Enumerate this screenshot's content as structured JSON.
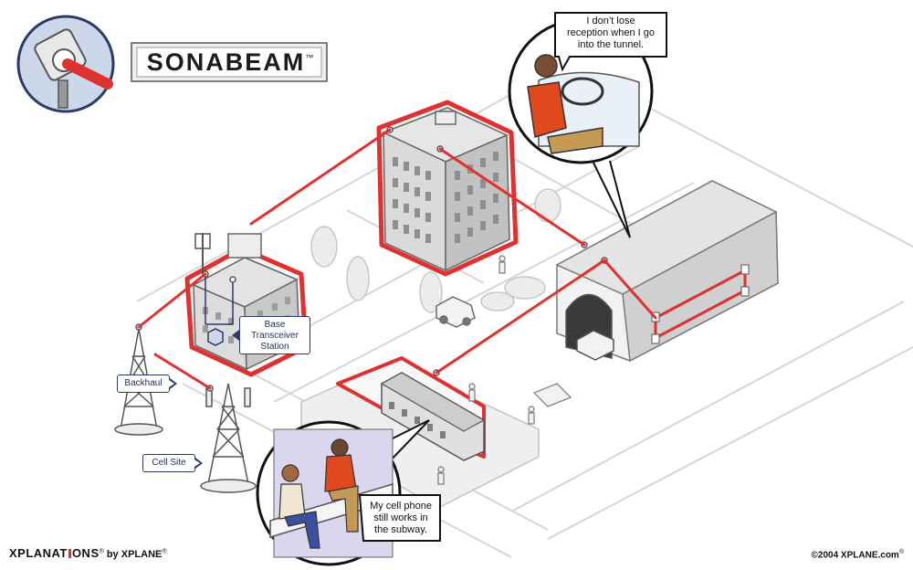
{
  "logo": {
    "text": "SONABEAM",
    "trademark": "™"
  },
  "labels": {
    "base_station_line1": "Base",
    "base_station_line2": "Transceiver",
    "base_station_line3": "Station",
    "backhaul": "Backhaul",
    "cell_site": "Cell Site"
  },
  "speech": {
    "driver_line1": "I don’t lose",
    "driver_line2": "reception when I go",
    "driver_line3": "into the tunnel.",
    "subway_line1": "My cell phone",
    "subway_line2": "still works in",
    "subway_line3": "the subway."
  },
  "footer": {
    "brand_part1": "XPLANAT",
    "brand_part2": "ONS",
    "brand_reg": "®",
    "by": " by XPLANE",
    "by_reg": "®",
    "copyright": "©2004 XPLANE.com",
    "copyright_reg": "®"
  },
  "colors": {
    "link_red": "#e03131",
    "navy": "#2b3a67",
    "light_gray": "#e4e4e4",
    "mid_gray": "#bdbdbd",
    "dark_gray": "#5a5a5a"
  }
}
